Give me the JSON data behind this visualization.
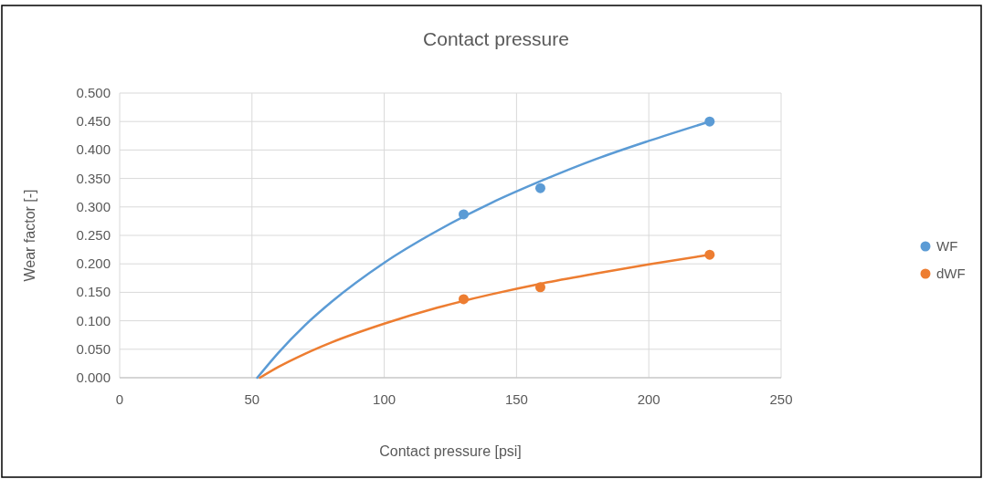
{
  "chart_data": {
    "type": "scatter",
    "title": "Contact pressure",
    "xlabel": "Contact pressure  [psi]",
    "ylabel": "Wear factor [-]",
    "xlim": [
      0,
      250
    ],
    "xticks": [
      0,
      50,
      100,
      150,
      200,
      250
    ],
    "ylim": [
      0,
      0.5
    ],
    "yticks": [
      {
        "value": 0,
        "label": "0.000"
      },
      {
        "value": 0.05,
        "label": "0.050"
      },
      {
        "value": 0.1,
        "label": "0.100"
      },
      {
        "value": 0.15,
        "label": "0.150"
      },
      {
        "value": 0.2,
        "label": "0.200"
      },
      {
        "value": 0.25,
        "label": "0.250"
      },
      {
        "value": 0.3,
        "label": "0.300"
      },
      {
        "value": 0.35,
        "label": "0.350"
      },
      {
        "value": 0.4,
        "label": "0.400"
      },
      {
        "value": 0.45,
        "label": "0.450"
      },
      {
        "value": 0.5,
        "label": "0.500"
      }
    ],
    "grid": true,
    "legend": "right",
    "series": [
      {
        "type": "line",
        "color": "#5b9bd5",
        "x": [
          52,
          60,
          70,
          80,
          100,
          120,
          140,
          160,
          180,
          200,
          223
        ],
        "values": [
          0,
          0.044,
          0.092,
          0.133,
          0.202,
          0.258,
          0.306,
          0.347,
          0.384,
          0.416,
          0.45
        ]
      },
      {
        "type": "line",
        "color": "#ed7d31",
        "x": [
          53,
          60,
          70,
          80,
          100,
          120,
          140,
          160,
          180,
          200,
          223
        ],
        "values": [
          0,
          0.019,
          0.042,
          0.062,
          0.095,
          0.123,
          0.146,
          0.166,
          0.183,
          0.199,
          0.216
        ]
      },
      {
        "marker": "circle",
        "name": "WF",
        "color": "#5b9bd5",
        "x": [
          130,
          159,
          223
        ],
        "values": [
          0.287,
          0.333,
          0.45
        ]
      },
      {
        "marker": "circle",
        "name": "dWF",
        "color": "#ed7d31",
        "x": [
          130,
          159,
          223
        ],
        "values": [
          0.138,
          0.159,
          0.216
        ]
      }
    ]
  }
}
